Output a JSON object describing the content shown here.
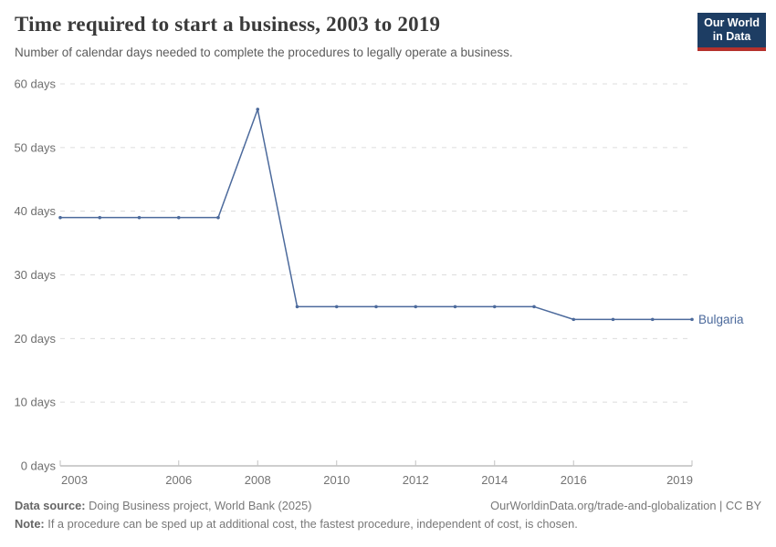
{
  "header": {
    "title": "Time required to start a business, 2003 to 2019",
    "subtitle": "Number of calendar days needed to complete the procedures to legally operate a business.",
    "logo": {
      "line1": "Our World",
      "line2": "in Data"
    }
  },
  "chart_data": {
    "type": "line",
    "title": "Time required to start a business, 2003 to 2019",
    "xlabel": "",
    "ylabel": "",
    "x": [
      2003,
      2004,
      2005,
      2006,
      2007,
      2008,
      2009,
      2010,
      2011,
      2012,
      2013,
      2014,
      2015,
      2016,
      2017,
      2018,
      2019
    ],
    "series": [
      {
        "name": "Bulgaria",
        "color": "#4C6A9C",
        "values": [
          39,
          39,
          39,
          39,
          39,
          56,
          25,
          25,
          25,
          25,
          25,
          25,
          25,
          23,
          23,
          23,
          23
        ]
      }
    ],
    "end_label": "Bulgaria",
    "xlim": [
      2003,
      2019
    ],
    "ylim": [
      0,
      60
    ],
    "x_ticks": [
      2003,
      2006,
      2008,
      2010,
      2012,
      2014,
      2016,
      2019
    ],
    "x_tick_labels": [
      "2003",
      "2006",
      "2008",
      "2010",
      "2012",
      "2014",
      "2016",
      "2019"
    ],
    "y_ticks": [
      0,
      10,
      20,
      30,
      40,
      50,
      60
    ],
    "y_tick_labels": [
      "0 days",
      "10 days",
      "20 days",
      "30 days",
      "40 days",
      "50 days",
      "60 days"
    ],
    "grid": "horizontal-dashed",
    "legend_position": "end-of-line-label"
  },
  "footer": {
    "datasource_label": "Data source:",
    "datasource_value": "Doing Business project, World Bank (2025)",
    "attribution": "OurWorldinData.org/trade-and-globalization | CC BY",
    "note_label": "Note:",
    "note_value": "If a procedure can be sped up at additional cost, the fastest procedure, independent of cost, is chosen."
  },
  "colors": {
    "line": "#4C6A9C",
    "entity_label": "#4C6A9C",
    "grid": "#dcdcdc",
    "axis": "#9e9e9e",
    "axis_tick": "#c2c2c2",
    "y_label_text": "#6e6e6e",
    "x_label_text": "#737373",
    "logo_bg": "#1d3d63",
    "logo_accent": "#b5312c"
  }
}
